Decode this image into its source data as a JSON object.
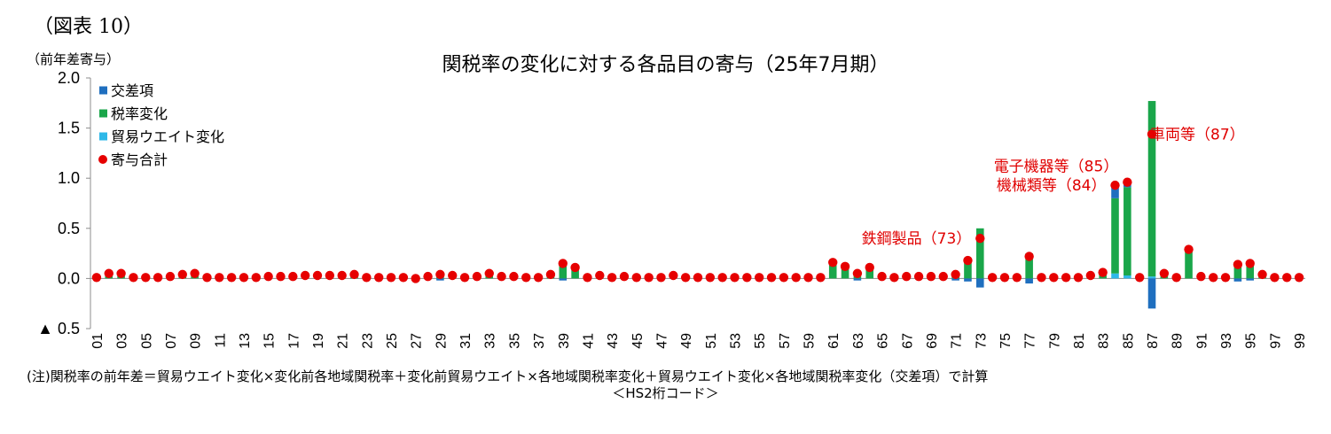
{
  "figure_label": "（図表 10）",
  "unit_label": "（前年差寄与）",
  "note": "(注)関税率の前年差＝貿易ウエイト変化×変化前各地域関税率＋変化前貿易ウエイト×各地域関税率変化＋貿易ウエイト変化×各地域関税率変化（交差項）で計算",
  "colors": {
    "cross": "#1f6fbf",
    "tariff": "#1aa64a",
    "weight": "#2eb8e8",
    "total": "#e60000",
    "axis": "#8c8c8c",
    "annotation": "#e00000"
  },
  "chart_data": {
    "type": "bar",
    "title": "関税率の変化に対する各品目の寄与（25年7月期）",
    "xlabel": "＜HS2桁コード＞",
    "ylabel": "",
    "ylim": [
      -0.5,
      2.0
    ],
    "y_ticks": [
      {
        "value": 2.0,
        "label": "2.0"
      },
      {
        "value": 1.5,
        "label": "1.5"
      },
      {
        "value": 1.0,
        "label": "1.0"
      },
      {
        "value": 0.5,
        "label": "0.5"
      },
      {
        "value": 0.0,
        "label": "0.0"
      },
      {
        "value": -0.5,
        "label": "▲ 0.5"
      }
    ],
    "categories": [
      "01",
      "02",
      "03",
      "04",
      "05",
      "06",
      "07",
      "08",
      "09",
      "10",
      "11",
      "12",
      "13",
      "14",
      "15",
      "16",
      "17",
      "18",
      "19",
      "20",
      "21",
      "22",
      "23",
      "24",
      "25",
      "26",
      "27",
      "28",
      "29",
      "30",
      "31",
      "32",
      "33",
      "34",
      "35",
      "36",
      "37",
      "38",
      "39",
      "40",
      "41",
      "42",
      "43",
      "44",
      "45",
      "46",
      "47",
      "48",
      "49",
      "50",
      "51",
      "52",
      "53",
      "54",
      "55",
      "56",
      "57",
      "58",
      "59",
      "60",
      "61",
      "62",
      "63",
      "64",
      "65",
      "66",
      "67",
      "68",
      "69",
      "70",
      "71",
      "72",
      "73",
      "74",
      "75",
      "76",
      "77",
      "78",
      "79",
      "80",
      "81",
      "82",
      "83",
      "84",
      "85",
      "86",
      "87",
      "88",
      "89",
      "90",
      "91",
      "92",
      "93",
      "94",
      "95",
      "96",
      "97",
      "98",
      "99"
    ],
    "series": [
      {
        "name": "交差項",
        "type": "bar",
        "values": [
          0,
          0,
          0,
          0,
          0,
          0,
          0,
          0,
          0,
          0,
          0,
          0,
          0,
          0,
          0,
          0,
          0,
          0,
          0,
          0,
          0,
          0,
          0,
          0,
          0,
          0,
          0,
          0,
          -0.02,
          0,
          0,
          0,
          0,
          0,
          0,
          0,
          0,
          0,
          -0.02,
          0,
          0,
          0,
          0,
          0,
          0,
          0,
          0,
          0,
          0,
          0,
          0,
          0,
          0,
          0,
          0,
          0,
          0,
          0,
          0,
          0,
          0,
          0,
          -0.02,
          0,
          0,
          0,
          0,
          0,
          0,
          0,
          -0.02,
          -0.03,
          -0.09,
          0,
          0,
          0,
          -0.05,
          0,
          0,
          0,
          0,
          0,
          0,
          0.11,
          0.04,
          0,
          -0.3,
          0,
          0,
          0,
          0,
          0,
          0,
          -0.03,
          -0.02,
          0,
          0,
          0,
          0
        ]
      },
      {
        "name": "税率変化",
        "type": "bar",
        "values": [
          0.01,
          0.04,
          0.05,
          0.01,
          0.01,
          0.01,
          0.02,
          0.03,
          0.05,
          0.01,
          0.01,
          0.01,
          0.01,
          0.01,
          0.02,
          0.02,
          0.02,
          0.03,
          0.03,
          0.03,
          0.03,
          0.04,
          0.01,
          0.01,
          0.01,
          0.01,
          0.01,
          0.02,
          0.04,
          0.03,
          0.01,
          0.02,
          0.05,
          0.02,
          0.02,
          0.01,
          0.01,
          0.04,
          0.15,
          0.11,
          0.01,
          0.03,
          0.01,
          0.02,
          0.01,
          0.01,
          0.01,
          0.03,
          0.01,
          0.01,
          0.01,
          0.01,
          0.01,
          0.01,
          0.01,
          0.01,
          0.01,
          0.01,
          0.01,
          0.01,
          0.16,
          0.12,
          0.06,
          0.11,
          0.02,
          0.01,
          0.02,
          0.02,
          0.02,
          0.02,
          0.04,
          0.16,
          0.5,
          0.01,
          0.01,
          0.01,
          0.25,
          0.01,
          0.01,
          0.01,
          0.01,
          0.03,
          0.06,
          0.75,
          0.88,
          0.01,
          1.75,
          0.05,
          0.01,
          0.29,
          0.03,
          0.01,
          0.01,
          0.14,
          0.15,
          0.04,
          0.01,
          0.01,
          0.01
        ]
      },
      {
        "name": "貿易ウエイト変化",
        "type": "bar",
        "values": [
          0,
          0,
          0,
          0,
          0,
          0,
          0,
          0,
          0,
          0,
          0,
          0,
          0,
          0,
          0,
          0,
          0,
          0,
          0,
          0,
          0,
          0,
          0,
          0,
          0,
          0,
          0,
          0,
          0,
          0,
          0,
          0,
          0,
          0,
          0,
          0,
          0,
          0,
          0,
          0,
          0,
          0,
          0,
          0,
          0,
          0,
          0,
          0,
          0,
          0,
          0,
          0,
          0,
          0,
          0,
          0,
          0,
          0,
          0,
          0,
          0,
          0,
          0,
          0,
          0,
          0,
          0,
          0,
          0,
          0,
          0,
          0,
          0,
          0,
          0,
          0,
          0,
          0,
          0,
          0,
          0,
          0,
          0,
          0.05,
          0.03,
          0,
          0.02,
          0,
          0,
          0,
          0,
          0,
          0,
          0,
          0,
          0,
          0,
          0,
          0
        ]
      },
      {
        "name": "寄与合計",
        "type": "dot",
        "values": [
          0.01,
          0.05,
          0.05,
          0.01,
          0.01,
          0.01,
          0.02,
          0.04,
          0.05,
          0.01,
          0.01,
          0.01,
          0.01,
          0.01,
          0.02,
          0.02,
          0.02,
          0.03,
          0.03,
          0.03,
          0.03,
          0.04,
          0.01,
          0.01,
          0.01,
          0.01,
          0.0,
          0.02,
          0.04,
          0.03,
          0.01,
          0.02,
          0.05,
          0.02,
          0.02,
          0.01,
          0.01,
          0.04,
          0.15,
          0.11,
          0.01,
          0.03,
          0.01,
          0.02,
          0.01,
          0.01,
          0.01,
          0.03,
          0.01,
          0.01,
          0.01,
          0.01,
          0.01,
          0.01,
          0.01,
          0.01,
          0.01,
          0.01,
          0.01,
          0.01,
          0.16,
          0.12,
          0.05,
          0.11,
          0.02,
          0.01,
          0.02,
          0.02,
          0.02,
          0.02,
          0.04,
          0.18,
          0.4,
          0.01,
          0.01,
          0.01,
          0.22,
          0.01,
          0.01,
          0.01,
          0.01,
          0.03,
          0.06,
          0.93,
          0.96,
          0.01,
          1.44,
          0.05,
          0.01,
          0.29,
          0.02,
          0.01,
          0.01,
          0.14,
          0.15,
          0.04,
          0.01,
          0.01,
          0.01
        ]
      }
    ],
    "annotations": [
      {
        "text": "鉄鋼製品（73）",
        "category": "73",
        "anchor": "end",
        "value": 0.4
      },
      {
        "text": "機械類等（84）",
        "category": "84",
        "anchor": "end",
        "value": 0.93
      },
      {
        "text": "電子機器等（85）",
        "category": "85",
        "anchor": "end",
        "value": 1.12
      },
      {
        "text": "車両等（87）",
        "category": "87",
        "anchor": "start",
        "value": 1.44
      }
    ],
    "legend": "top-left",
    "grid": false
  }
}
